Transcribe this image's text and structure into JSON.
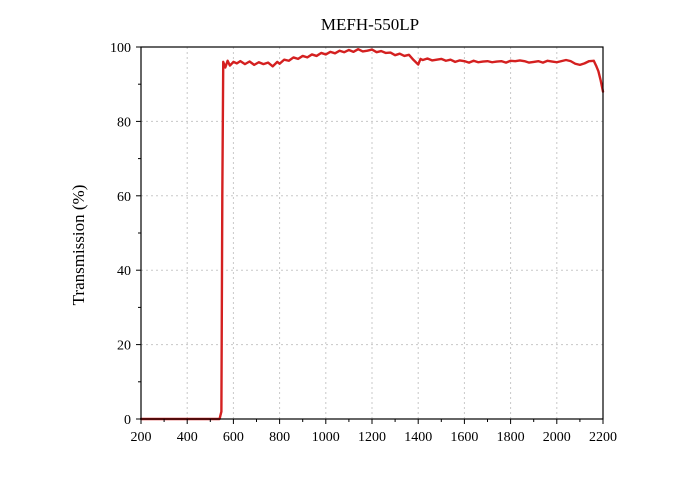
{
  "chart_data": {
    "type": "line",
    "title": "MEFH-550LP",
    "xlabel": "",
    "ylabel": "Transmission (%)",
    "xlim": [
      200,
      2200
    ],
    "ylim": [
      0,
      100
    ],
    "xticks": [
      200,
      400,
      600,
      800,
      1000,
      1200,
      1400,
      1600,
      1800,
      2000,
      2200
    ],
    "yticks": [
      0,
      20,
      40,
      60,
      80,
      100
    ],
    "grid": true,
    "line_color": "#d42020",
    "series": [
      {
        "x": [
          200,
          300,
          400,
          500,
          540,
          548,
          552,
          556,
          565,
          575,
          585,
          600,
          615,
          630,
          650,
          670,
          690,
          710,
          730,
          750,
          770,
          790,
          800,
          820,
          840,
          860,
          880,
          900,
          920,
          940,
          960,
          980,
          1000,
          1020,
          1040,
          1060,
          1080,
          1100,
          1120,
          1140,
          1160,
          1180,
          1200,
          1220,
          1240,
          1260,
          1280,
          1300,
          1320,
          1340,
          1360,
          1380,
          1400,
          1410,
          1420,
          1440,
          1460,
          1480,
          1500,
          1520,
          1540,
          1560,
          1580,
          1600,
          1620,
          1640,
          1660,
          1680,
          1700,
          1720,
          1740,
          1760,
          1780,
          1800,
          1820,
          1840,
          1860,
          1880,
          1900,
          1920,
          1940,
          1960,
          1980,
          2000,
          2020,
          2040,
          2060,
          2080,
          2100,
          2120,
          2140,
          2160,
          2170,
          2180,
          2190,
          2200
        ],
        "y": [
          0,
          0,
          0,
          0,
          0,
          2,
          60,
          96,
          94.5,
          96.3,
          95,
          96,
          95.6,
          96.2,
          95.4,
          96.1,
          95.2,
          95.9,
          95.4,
          95.8,
          94.8,
          96,
          95.5,
          96.6,
          96.3,
          97.2,
          96.8,
          97.6,
          97.2,
          98,
          97.6,
          98.4,
          98,
          98.7,
          98.3,
          99,
          98.6,
          99.2,
          98.7,
          99.4,
          98.8,
          99,
          99.3,
          98.6,
          98.9,
          98.4,
          98.5,
          97.8,
          98.2,
          97.6,
          97.9,
          96.5,
          95.3,
          96.8,
          96.5,
          96.9,
          96.4,
          96.6,
          96.8,
          96.3,
          96.6,
          96,
          96.4,
          96.2,
          95.8,
          96.3,
          95.9,
          96.1,
          96.2,
          95.9,
          96.1,
          96.2,
          95.8,
          96.3,
          96.2,
          96.4,
          96.2,
          95.8,
          96,
          96.2,
          95.8,
          96.3,
          96.1,
          95.9,
          96.2,
          96.5,
          96.2,
          95.5,
          95.2,
          95.6,
          96.2,
          96.3,
          95,
          93.5,
          91,
          88
        ]
      }
    ]
  }
}
